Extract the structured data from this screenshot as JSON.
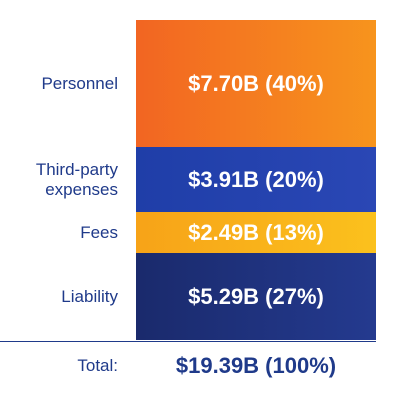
{
  "chart_data": {
    "type": "bar",
    "orientation": "stacked-vertical",
    "unit": "$B",
    "categories": [
      "Personnel",
      "Third-party expenses",
      "Fees",
      "Liability"
    ],
    "display_categories": [
      [
        "Personnel"
      ],
      [
        "Third-party",
        "expenses"
      ],
      [
        "Fees"
      ],
      [
        "Liability"
      ]
    ],
    "values": [
      7.7,
      3.91,
      2.49,
      5.29
    ],
    "percents": [
      40,
      20,
      13,
      27
    ],
    "labels": [
      "$7.70B (40%)",
      "$3.91B (20%)",
      "$2.49B (13%)",
      "$5.29B (27%)"
    ],
    "colors": [
      [
        "#f26522",
        "#f7941d"
      ],
      [
        "#1f3ea8",
        "#2a47b5"
      ],
      [
        "#f7a318",
        "#fbc11d"
      ],
      [
        "#1a2a6c",
        "#243a8f"
      ]
    ],
    "total_label": "Total:",
    "total_value_label": "$19.39B (100%)",
    "total_value": 19.39,
    "total_percent": 100
  }
}
